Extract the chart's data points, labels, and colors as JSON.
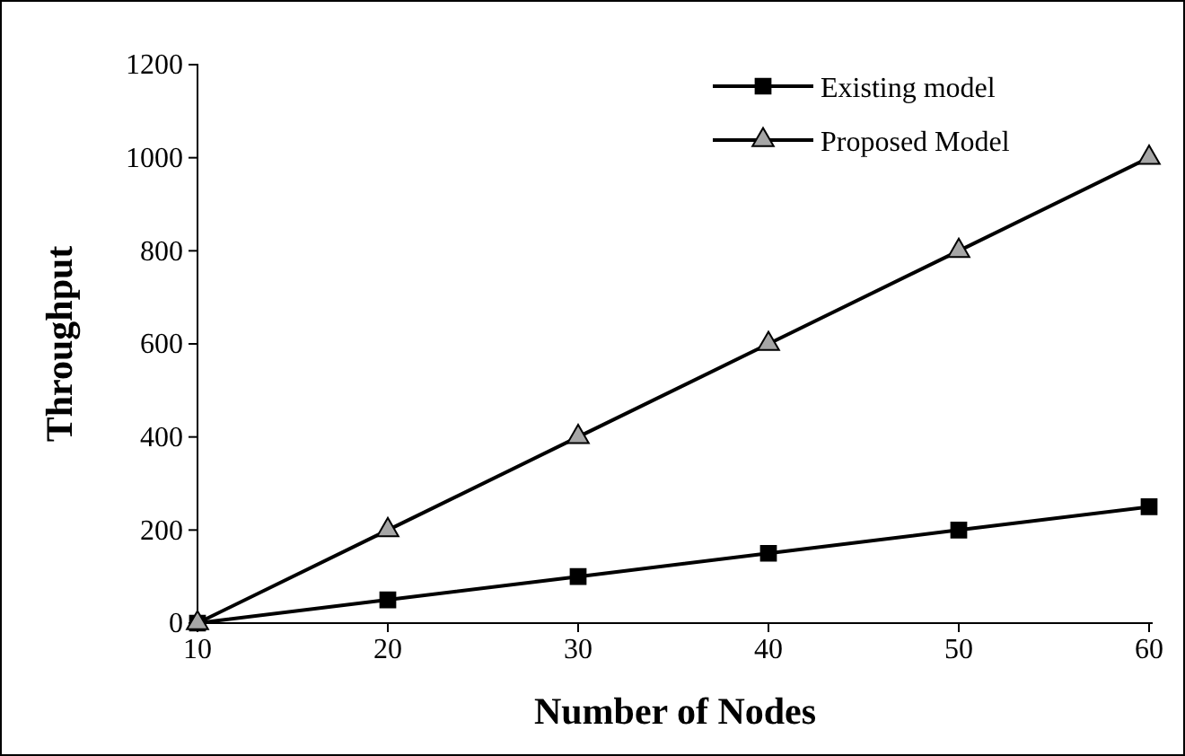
{
  "chart_data": {
    "type": "line",
    "xlabel": "Number of Nodes",
    "ylabel": "Throughput",
    "categories": [
      "10",
      "20",
      "30",
      "40",
      "50",
      "60"
    ],
    "series": [
      {
        "name": "Existing model",
        "color": "#000000",
        "marker": "square",
        "values": [
          0,
          50,
          100,
          150,
          200,
          250
        ]
      },
      {
        "name": "Proposed Model",
        "color": "#000000",
        "marker": "triangle",
        "values": [
          0,
          200,
          400,
          600,
          800,
          1000
        ]
      }
    ],
    "ylim": [
      0,
      1200
    ],
    "yticks": [
      0,
      200,
      400,
      600,
      800,
      1000,
      1200
    ],
    "grid": false,
    "legend": "top right",
    "line_style": "solid"
  }
}
